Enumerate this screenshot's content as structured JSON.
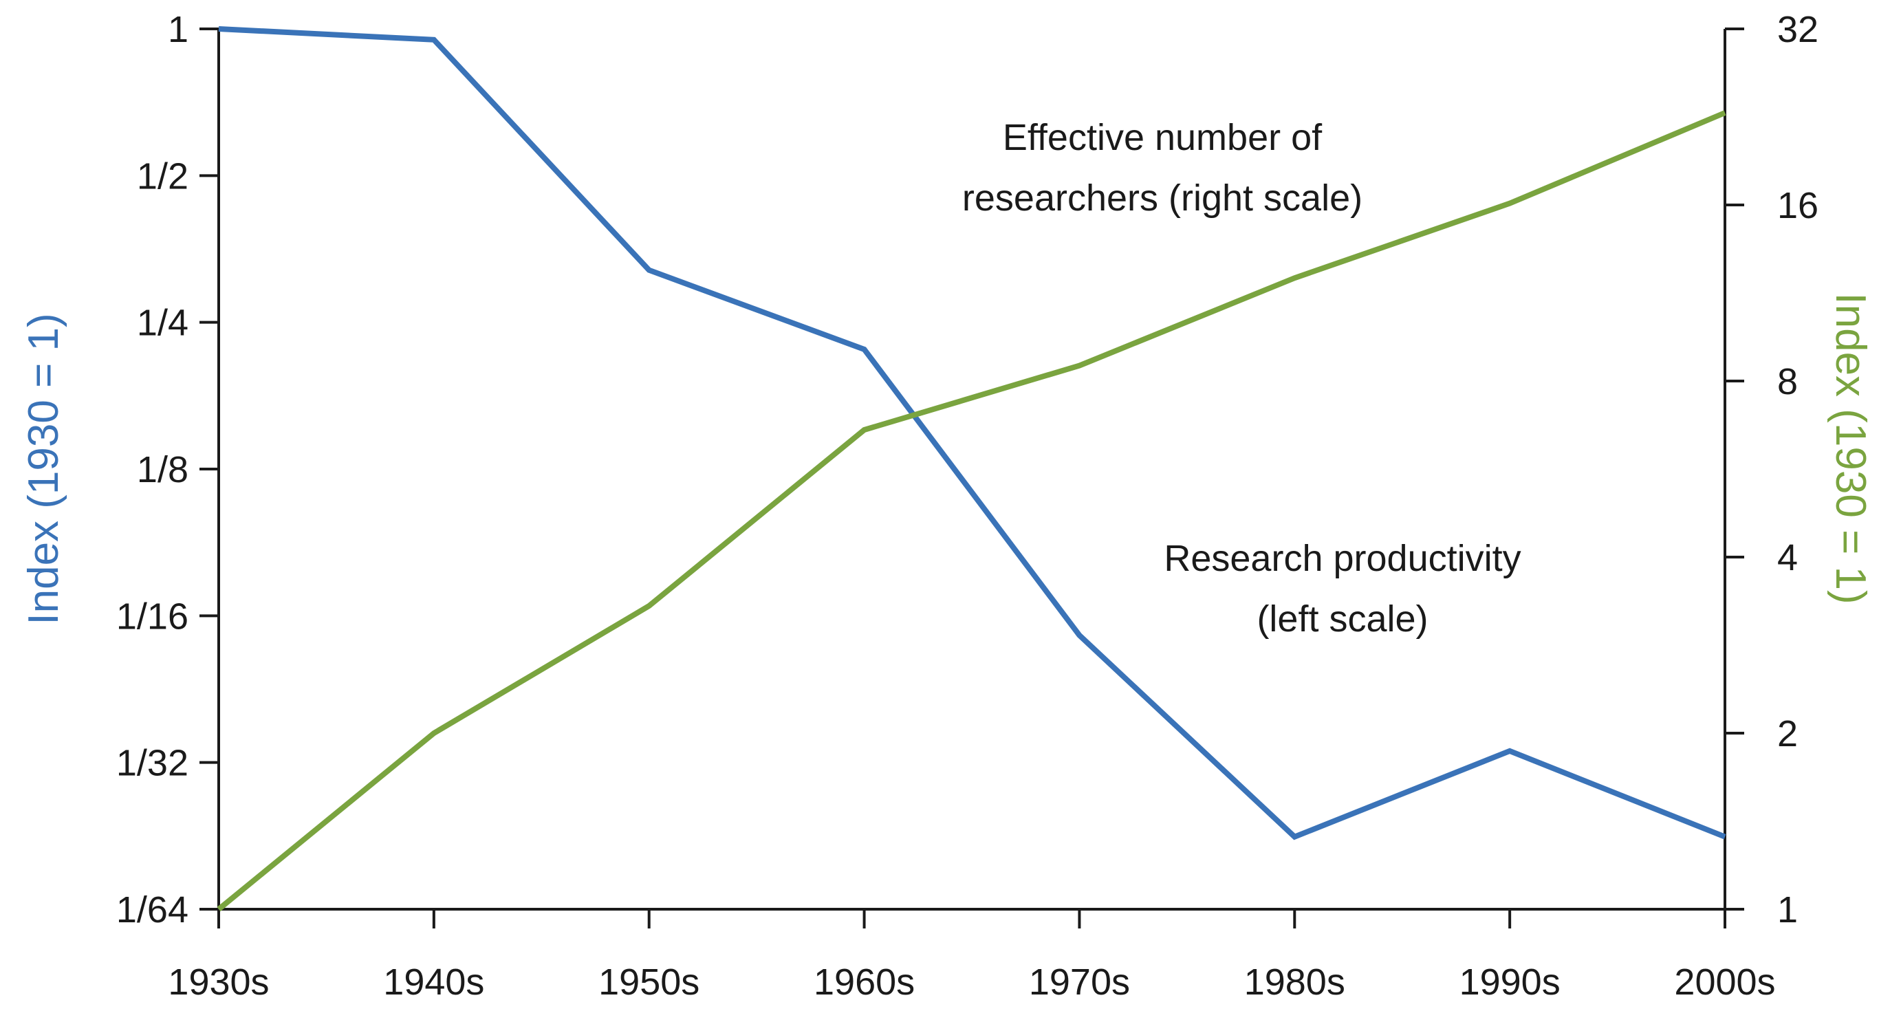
{
  "chart_data": {
    "type": "line",
    "categories": [
      "1930s",
      "1940s",
      "1950s",
      "1960s",
      "1970s",
      "1980s",
      "1990s",
      "2000s"
    ],
    "left_axis": {
      "label": "Index (1930 = 1)",
      "scale": "log2",
      "ticks": [
        1,
        0.5,
        0.25,
        0.125,
        0.0625,
        0.03125,
        0.015625
      ],
      "tick_labels": [
        "1",
        "1/2",
        "1/4",
        "1/8",
        "1/16",
        "1/32",
        "1/64"
      ],
      "range": [
        0.015625,
        1
      ],
      "color": "#3a73b8"
    },
    "right_axis": {
      "label": "Index (1930 = 1)",
      "scale": "log2",
      "ticks": [
        1,
        2,
        4,
        8,
        16,
        32
      ],
      "tick_labels": [
        "1",
        "2",
        "4",
        "8",
        "16",
        "32"
      ],
      "range": [
        1,
        32
      ],
      "color": "#7aa43f"
    },
    "series": [
      {
        "axis": "left",
        "color": "#3a73b8",
        "values": [
          1,
          0.95,
          0.32,
          0.22,
          0.057,
          0.022,
          0.033,
          0.022
        ],
        "label": "Research productivity\n(left scale)"
      },
      {
        "axis": "right",
        "color": "#7aa43f",
        "values": [
          1,
          2.0,
          3.3,
          6.6,
          8.5,
          12.0,
          16.1,
          23.0
        ],
        "label": "Effective number of\nresearchers (right scale)"
      }
    ],
    "annotations": [
      {
        "lines": [
          "Effective number of",
          "researchers (right scale)"
        ]
      },
      {
        "lines": [
          "Research productivity",
          "(left scale)"
        ]
      }
    ],
    "grid": false,
    "legend": "none"
  }
}
